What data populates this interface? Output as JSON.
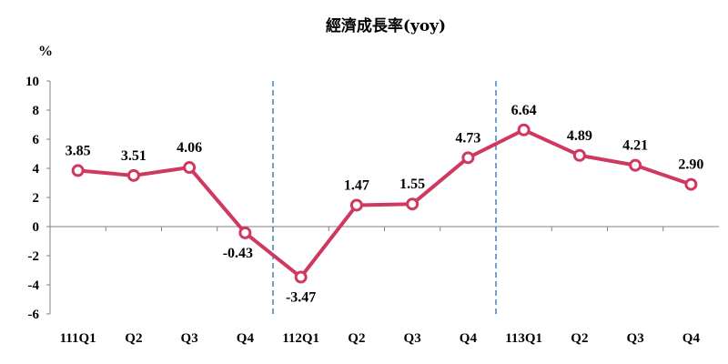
{
  "chart_data": {
    "type": "line",
    "title": "經濟成長率(yoy)",
    "ylabel": "%",
    "xlabel": "",
    "categories": [
      "111Q1",
      "Q2",
      "Q3",
      "Q4",
      "112Q1",
      "Q2",
      "Q3",
      "Q4",
      "113Q1",
      "Q2",
      "Q3",
      "Q4"
    ],
    "series": [
      {
        "values": [
          3.85,
          3.51,
          4.06,
          -0.43,
          -3.47,
          1.47,
          1.55,
          4.73,
          6.64,
          4.89,
          4.21,
          2.9
        ],
        "labels": [
          "3.85",
          "3.51",
          "4.06",
          "-0.43",
          "-3.47",
          "1.47",
          "1.55",
          "4.73",
          "6.64",
          "4.89",
          "4.21",
          "2.90"
        ],
        "color": "#d0395f"
      }
    ],
    "ylim": [
      -6,
      10
    ],
    "yticks": [
      "10",
      "8",
      "6",
      "4",
      "2",
      "0",
      "-2",
      "-4",
      "-6"
    ],
    "separators_between": [
      [
        3,
        4
      ],
      [
        7,
        8
      ]
    ],
    "separator_color": "#4a7fc1",
    "axis_color": "#808080",
    "grid": false,
    "legend": "none"
  }
}
